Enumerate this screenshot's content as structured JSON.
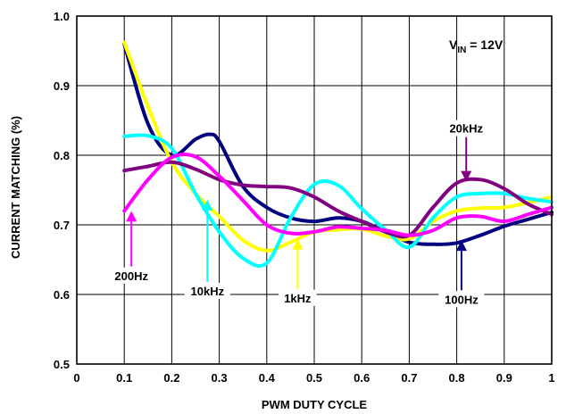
{
  "chart_data": {
    "type": "line",
    "title": "",
    "xlabel": "PWM DUTY CYCLE",
    "ylabel": "CURRENT MATCHING (%)",
    "xlim": [
      0,
      1
    ],
    "ylim": [
      0.5,
      1.0
    ],
    "x_ticks": [
      0,
      0.1,
      0.2,
      0.3,
      0.4,
      0.5,
      0.6,
      0.7,
      0.8,
      0.9,
      1
    ],
    "x_tick_labels": [
      "0",
      "0.1",
      "0.2",
      "0.3",
      "0.4",
      "0.5",
      "0.6",
      "0.7",
      "0.8",
      "0.9",
      "1"
    ],
    "y_ticks": [
      0.5,
      0.6,
      0.7,
      0.8,
      0.9,
      1.0
    ],
    "y_tick_labels": [
      "0.5",
      "0.6",
      "0.7",
      "0.8",
      "0.9",
      "1.0"
    ],
    "grid": true,
    "annotation": {
      "main": "V",
      "sub": "IN",
      "rest": " = 12V"
    },
    "series": [
      {
        "name": "100Hz",
        "color": "#000080",
        "points": [
          [
            0.1,
            0.96
          ],
          [
            0.15,
            0.845
          ],
          [
            0.2,
            0.8
          ],
          [
            0.25,
            0.823
          ],
          [
            0.28,
            0.83
          ],
          [
            0.3,
            0.82
          ],
          [
            0.35,
            0.755
          ],
          [
            0.4,
            0.725
          ],
          [
            0.45,
            0.71
          ],
          [
            0.5,
            0.705
          ],
          [
            0.55,
            0.71
          ],
          [
            0.6,
            0.705
          ],
          [
            0.65,
            0.69
          ],
          [
            0.7,
            0.675
          ],
          [
            0.75,
            0.672
          ],
          [
            0.8,
            0.674
          ],
          [
            0.85,
            0.685
          ],
          [
            0.9,
            0.698
          ],
          [
            0.95,
            0.708
          ],
          [
            1.0,
            0.718
          ]
        ]
      },
      {
        "name": "1kHz",
        "color": "#ffff00",
        "points": [
          [
            0.1,
            0.962
          ],
          [
            0.15,
            0.87
          ],
          [
            0.2,
            0.79
          ],
          [
            0.25,
            0.745
          ],
          [
            0.3,
            0.712
          ],
          [
            0.35,
            0.678
          ],
          [
            0.4,
            0.663
          ],
          [
            0.45,
            0.675
          ],
          [
            0.5,
            0.69
          ],
          [
            0.55,
            0.693
          ],
          [
            0.6,
            0.694
          ],
          [
            0.65,
            0.684
          ],
          [
            0.7,
            0.68
          ],
          [
            0.75,
            0.705
          ],
          [
            0.8,
            0.72
          ],
          [
            0.85,
            0.724
          ],
          [
            0.9,
            0.725
          ],
          [
            0.95,
            0.732
          ],
          [
            1.0,
            0.74
          ]
        ]
      },
      {
        "name": "10kHz",
        "color": "#00ffff",
        "points": [
          [
            0.1,
            0.827
          ],
          [
            0.15,
            0.828
          ],
          [
            0.2,
            0.81
          ],
          [
            0.25,
            0.745
          ],
          [
            0.3,
            0.69
          ],
          [
            0.35,
            0.652
          ],
          [
            0.4,
            0.645
          ],
          [
            0.45,
            0.71
          ],
          [
            0.5,
            0.758
          ],
          [
            0.55,
            0.757
          ],
          [
            0.6,
            0.723
          ],
          [
            0.65,
            0.693
          ],
          [
            0.7,
            0.668
          ],
          [
            0.75,
            0.71
          ],
          [
            0.8,
            0.74
          ],
          [
            0.85,
            0.745
          ],
          [
            0.9,
            0.745
          ],
          [
            0.95,
            0.738
          ],
          [
            1.0,
            0.733
          ]
        ]
      },
      {
        "name": "20kHz",
        "color": "#800080",
        "points": [
          [
            0.1,
            0.778
          ],
          [
            0.15,
            0.784
          ],
          [
            0.2,
            0.79
          ],
          [
            0.25,
            0.78
          ],
          [
            0.3,
            0.765
          ],
          [
            0.35,
            0.757
          ],
          [
            0.4,
            0.755
          ],
          [
            0.45,
            0.753
          ],
          [
            0.5,
            0.74
          ],
          [
            0.55,
            0.72
          ],
          [
            0.6,
            0.705
          ],
          [
            0.65,
            0.69
          ],
          [
            0.7,
            0.685
          ],
          [
            0.75,
            0.725
          ],
          [
            0.8,
            0.76
          ],
          [
            0.85,
            0.765
          ],
          [
            0.9,
            0.752
          ],
          [
            0.95,
            0.73
          ],
          [
            1.0,
            0.715
          ]
        ]
      },
      {
        "name": "200Hz",
        "color": "#ff00ff",
        "points": [
          [
            0.1,
            0.72
          ],
          [
            0.15,
            0.765
          ],
          [
            0.2,
            0.797
          ],
          [
            0.25,
            0.798
          ],
          [
            0.3,
            0.77
          ],
          [
            0.35,
            0.735
          ],
          [
            0.4,
            0.7
          ],
          [
            0.45,
            0.688
          ],
          [
            0.5,
            0.69
          ],
          [
            0.55,
            0.697
          ],
          [
            0.6,
            0.695
          ],
          [
            0.65,
            0.692
          ],
          [
            0.7,
            0.685
          ],
          [
            0.75,
            0.692
          ],
          [
            0.8,
            0.71
          ],
          [
            0.85,
            0.712
          ],
          [
            0.9,
            0.705
          ],
          [
            0.95,
            0.715
          ],
          [
            1.0,
            0.725
          ]
        ]
      }
    ],
    "labels": [
      {
        "text": "200Hz",
        "color": "#ff00ff",
        "tip": [
          0.115,
          0.72
        ],
        "base": [
          0.115,
          0.64
        ]
      },
      {
        "text": "10kHz",
        "color": "#00ffff",
        "tip": [
          0.275,
          0.736
        ],
        "base": [
          0.275,
          0.618
        ]
      },
      {
        "text": "1kHz",
        "color": "#ffff00",
        "tip": [
          0.465,
          0.68
        ],
        "base": [
          0.465,
          0.608
        ]
      },
      {
        "text": "20kHz",
        "color": "#800080",
        "tip": [
          0.82,
          0.762
        ],
        "base": [
          0.82,
          0.826
        ]
      },
      {
        "text": "100Hz",
        "color": "#000080",
        "tip": [
          0.81,
          0.678
        ],
        "base": [
          0.81,
          0.606
        ]
      }
    ]
  }
}
